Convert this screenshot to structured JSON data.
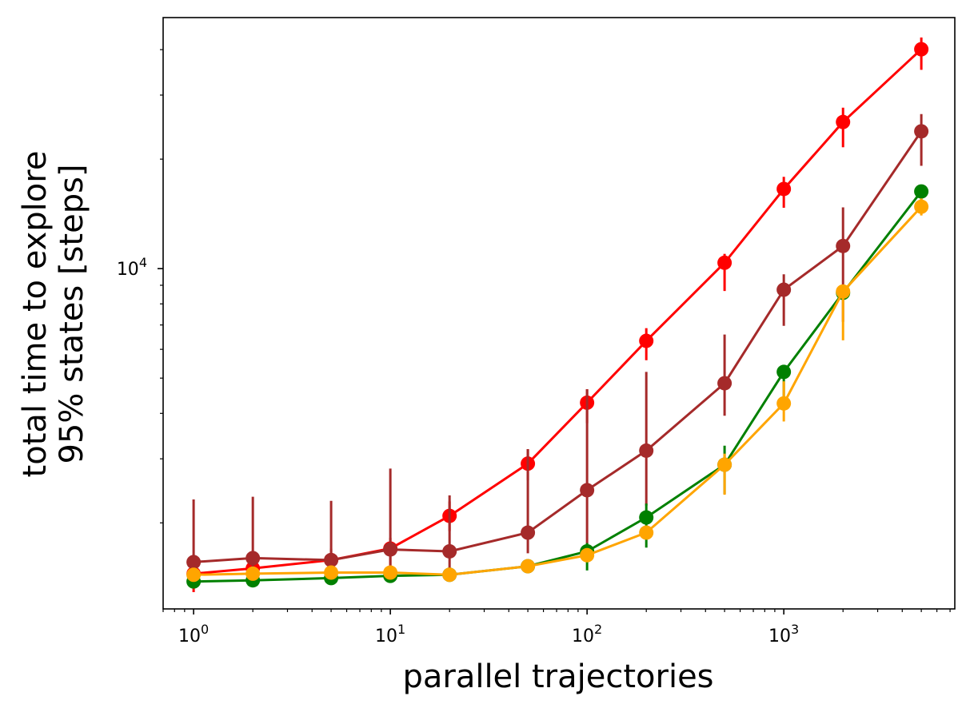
{
  "chart_data": {
    "type": "line",
    "title": "",
    "xlabel": "parallel trajectories",
    "ylabel_lines": [
      "total time to explore",
      "95% states [steps]"
    ],
    "xscale": "log",
    "yscale": "log",
    "xlim": [
      0.7,
      7400
    ],
    "ylim": [
      1160,
      49000
    ],
    "x_ticks": [
      {
        "value": 1,
        "base": "10",
        "exp": "0"
      },
      {
        "value": 10,
        "base": "10",
        "exp": "1"
      },
      {
        "value": 100,
        "base": "10",
        "exp": "2"
      },
      {
        "value": 1000,
        "base": "10",
        "exp": "3"
      }
    ],
    "y_ticks": [
      {
        "value": 10000,
        "base": "10",
        "exp": "4"
      }
    ],
    "grid": false,
    "legend": null,
    "series": [
      {
        "name": "red",
        "color": "#ff0000",
        "x": [
          1,
          2,
          5,
          10,
          20,
          50,
          100,
          200,
          500,
          1000,
          2000,
          5000
        ],
        "y": [
          1450,
          1500,
          1580,
          1700,
          2090,
          2910,
          4280,
          6330,
          10380,
          16560,
          25300,
          40100
        ],
        "err_low": [
          1290,
          1330,
          1420,
          1520,
          1900,
          2620,
          3760,
          5600,
          8680,
          14700,
          21560,
          35200
        ],
        "err_high": [
          1550,
          1620,
          1700,
          1820,
          2290,
          3190,
          4660,
          6860,
          10980,
          17880,
          27700,
          43200
        ]
      },
      {
        "name": "brown",
        "color": "#a52a2a",
        "x": [
          1,
          2,
          5,
          10,
          20,
          50,
          100,
          200,
          500,
          1000,
          2000,
          5000
        ],
        "y": [
          1560,
          1600,
          1580,
          1690,
          1670,
          1880,
          2460,
          3160,
          4840,
          8750,
          11540,
          23850
        ],
        "err_low": [
          1330,
          1380,
          1380,
          1450,
          1430,
          1650,
          1750,
          2230,
          3940,
          6960,
          7140,
          19170
        ],
        "err_high": [
          2320,
          2360,
          2300,
          2820,
          2380,
          3190,
          4660,
          5200,
          6590,
          9650,
          14740,
          26600
        ]
      },
      {
        "name": "green",
        "color": "#008000",
        "x": [
          1,
          2,
          5,
          10,
          20,
          50,
          100,
          200,
          500,
          1000,
          2000,
          5000
        ],
        "y": [
          1380,
          1390,
          1410,
          1430,
          1440,
          1520,
          1670,
          2070,
          2890,
          5200,
          8580,
          16300
        ],
        "err_low": [
          1320,
          1330,
          1350,
          1370,
          1380,
          1470,
          1480,
          1710,
          2400,
          4200,
          8200,
          14800
        ],
        "err_high": [
          1440,
          1450,
          1470,
          1490,
          1500,
          1570,
          1760,
          2260,
          3260,
          5300,
          8960,
          17000
        ]
      },
      {
        "name": "orange",
        "color": "#ffa500",
        "x": [
          1,
          2,
          5,
          10,
          20,
          50,
          100,
          200,
          500,
          1000,
          2000,
          5000
        ],
        "y": [
          1440,
          1450,
          1460,
          1460,
          1440,
          1520,
          1630,
          1880,
          2890,
          4260,
          8650,
          14800
        ],
        "err_low": [
          1400,
          1410,
          1420,
          1420,
          1400,
          1480,
          1590,
          1800,
          2390,
          3800,
          6350,
          14000
        ],
        "err_high": [
          1480,
          1490,
          1500,
          1500,
          1480,
          1560,
          1670,
          1950,
          3100,
          4900,
          8900,
          15600
        ]
      }
    ]
  }
}
